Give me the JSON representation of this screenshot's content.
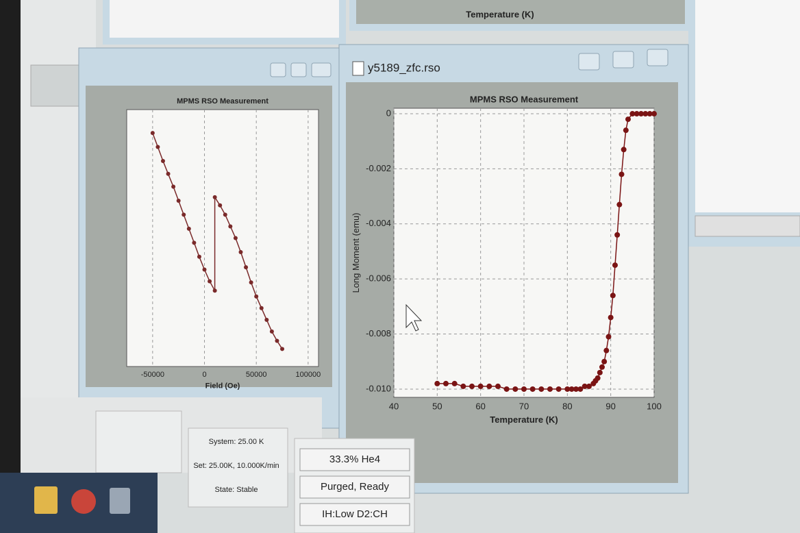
{
  "windows": [
    {
      "title": "y5189_zfc.rso",
      "chart": {
        "type": "scatter-line",
        "title": "MPMS RSO Measurement",
        "x_label": "Temperature (K)",
        "y_label": "Long Moment (emu)",
        "color": "#7a1414",
        "x": [
          50,
          52,
          54,
          56,
          58,
          60,
          62,
          64,
          66,
          68,
          70,
          72,
          74,
          76,
          78,
          80,
          81,
          82,
          83,
          84,
          85,
          86,
          86.5,
          87,
          87.5,
          88,
          88.5,
          89,
          89.5,
          90,
          90.5,
          91,
          91.5,
          92,
          92.5,
          93,
          93.5,
          94,
          95,
          96,
          97,
          98,
          99,
          100
        ],
        "y": [
          -0.0098,
          -0.0098,
          -0.0098,
          -0.0099,
          -0.0099,
          -0.0099,
          -0.0099,
          -0.0099,
          -0.01,
          -0.01,
          -0.01,
          -0.01,
          -0.01,
          -0.01,
          -0.01,
          -0.01,
          -0.01,
          -0.01,
          -0.01,
          -0.0099,
          -0.0099,
          -0.0098,
          -0.0097,
          -0.0096,
          -0.0094,
          -0.0092,
          -0.009,
          -0.0086,
          -0.0081,
          -0.0074,
          -0.0066,
          -0.0055,
          -0.0044,
          -0.0033,
          -0.0022,
          -0.0013,
          -0.0006,
          -0.0002,
          0,
          0,
          0,
          0,
          0,
          0
        ],
        "xlim": [
          40,
          100
        ],
        "ylim": [
          -0.0103,
          0.0002
        ],
        "xticks": [
          40,
          50,
          60,
          70,
          80,
          90,
          100
        ],
        "yticks": [
          0,
          -0.002,
          -0.004,
          -0.006,
          -0.008,
          {
            "value": -0.01,
            "label": "-0.010"
          }
        ],
        "grid": true
      }
    },
    {
      "chart": {
        "type": "scatter-line",
        "title": "MPMS RSO Measurement",
        "x_label": "Field (Oe)",
        "color": "#7a2a2a",
        "x": [
          -50000,
          -45000,
          -40000,
          -35000,
          -30000,
          -25000,
          -20000,
          -15000,
          -10000,
          -5000,
          0,
          5000,
          10000,
          10000,
          15000,
          20000,
          25000,
          30000,
          35000,
          40000,
          45000,
          50000,
          55000,
          60000,
          65000,
          70000,
          75000
        ],
        "y": [
          0.9,
          0.78,
          0.66,
          0.55,
          0.44,
          0.32,
          0.2,
          0.08,
          -0.04,
          -0.16,
          -0.27,
          -0.37,
          -0.45,
          0.35,
          0.28,
          0.2,
          0.1,
          0.0,
          -0.12,
          -0.25,
          -0.38,
          -0.5,
          -0.6,
          -0.7,
          -0.8,
          -0.88,
          -0.95
        ],
        "xlim": [
          -75000,
          110000
        ],
        "ylim": [
          -1.1,
          1.1
        ],
        "xticks": [
          -50000,
          0,
          50000,
          100000
        ],
        "grid": true
      }
    }
  ],
  "top_panel": {
    "x_label": "Temperature (K)"
  },
  "status": {
    "system": [
      "System: 25.00 K",
      "Set: 25.00K, 10.000K/min",
      "State: Stable"
    ],
    "helium": [
      "33.3% He4",
      "Purged, Ready",
      "IH:Low  D2:CH"
    ]
  }
}
